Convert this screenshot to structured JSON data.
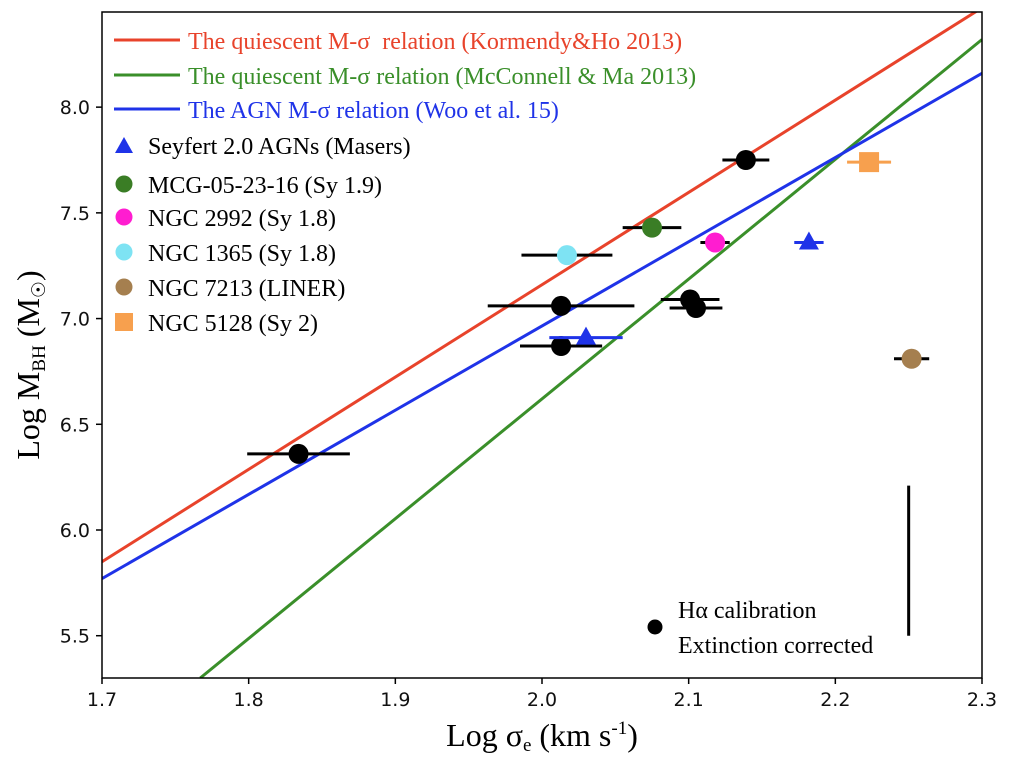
{
  "chart_data": {
    "type": "scatter",
    "xlabel": {
      "main": "Log σ",
      "sub": "e",
      "unit_pre": " (km s",
      "unit_sup": "-1",
      "unit_post": ")"
    },
    "ylabel": {
      "main": "Log M",
      "sub": "BH",
      "unit": "(M",
      "unit_sub": "☉",
      "unit_close": ")"
    },
    "xlim": [
      1.7,
      2.3
    ],
    "ylim": [
      5.3,
      8.45
    ],
    "xticks": [
      1.7,
      1.8,
      1.9,
      2.0,
      2.1,
      2.2,
      2.3
    ],
    "xtick_labels": [
      "1.7",
      "1.8",
      "1.9",
      "2.0",
      "2.1",
      "2.2",
      "2.3"
    ],
    "yticks": [
      5.5,
      6.0,
      6.5,
      7.0,
      7.5,
      8.0
    ],
    "ytick_labels": [
      "5.5",
      "6.0",
      "6.5",
      "7.0",
      "7.5",
      "8.0"
    ],
    "relations": [
      {
        "name": "The quiescent M-σ  relation (Kormendy&Ho 2013)",
        "color": "#e8432b",
        "x": [
          1.7,
          2.3
        ],
        "y": [
          5.85,
          8.47
        ]
      },
      {
        "name": "The quiescent M-σ relation (McConnell & Ma 2013)",
        "color": "#3a8f2a",
        "x": [
          1.767,
          2.3
        ],
        "y": [
          5.3,
          8.32
        ]
      },
      {
        "name": "The AGN M-σ relation (Woo et al. 15)",
        "color": "#1f33e8",
        "x": [
          1.7,
          2.3
        ],
        "y": [
          5.77,
          8.16
        ]
      }
    ],
    "series": [
      {
        "name": "Hα calibration Extinction corrected",
        "marker": "circle",
        "color": "#000000",
        "points": [
          {
            "x": 1.834,
            "y": 6.36,
            "xerr": 0.035
          },
          {
            "x": 2.013,
            "y": 7.06,
            "xerr": 0.05
          },
          {
            "x": 2.013,
            "y": 6.87,
            "xerr": 0.028
          },
          {
            "x": 2.101,
            "y": 7.09,
            "xerr": 0.02
          },
          {
            "x": 2.105,
            "y": 7.05,
            "xerr": 0.018
          },
          {
            "x": 2.139,
            "y": 7.75,
            "xerr": 0.016
          }
        ]
      },
      {
        "name": "Seyfert 2.0 AGNs (Masers)",
        "marker": "triangle",
        "color": "#1f33e8",
        "points": [
          {
            "x": 2.03,
            "y": 6.91,
            "xerr": 0.025
          },
          {
            "x": 2.182,
            "y": 7.36,
            "xerr": 0.01
          }
        ]
      },
      {
        "name": "MCG-05-23-16 (Sy 1.9)",
        "marker": "circle",
        "color": "#3a7d25",
        "points": [
          {
            "x": 2.075,
            "y": 7.43,
            "xerr": 0.02
          }
        ]
      },
      {
        "name": "NGC 2992 (Sy 1.8)",
        "marker": "circle",
        "color": "#ff1dd0",
        "points": [
          {
            "x": 2.118,
            "y": 7.36,
            "xerr": 0.01
          }
        ]
      },
      {
        "name": "NGC 1365 (Sy 1.8)",
        "marker": "circle",
        "color": "#7ee3f3",
        "points": [
          {
            "x": 2.017,
            "y": 7.3,
            "xerr": 0.031
          }
        ]
      },
      {
        "name": "NGC 7213 (LINER)",
        "marker": "circle",
        "color": "#a57f4f",
        "points": [
          {
            "x": 2.252,
            "y": 6.81,
            "xerr": 0.012
          }
        ]
      },
      {
        "name": "NGC 5128 (Sy 2)",
        "marker": "square",
        "color": "#f7a04e",
        "points": [
          {
            "x": 2.223,
            "y": 7.74,
            "xerr": 0.015
          }
        ]
      }
    ],
    "typical_error_bar": {
      "x": 2.25,
      "y_low": 5.5,
      "y_high": 6.21
    },
    "legend": {
      "placement": "top-left",
      "line_entries": 3,
      "marker_entries": 6
    },
    "annotation": {
      "marker": "circle",
      "line1": "Hα calibration",
      "line2": "Extinction corrected",
      "placement": "bottom-right"
    }
  }
}
